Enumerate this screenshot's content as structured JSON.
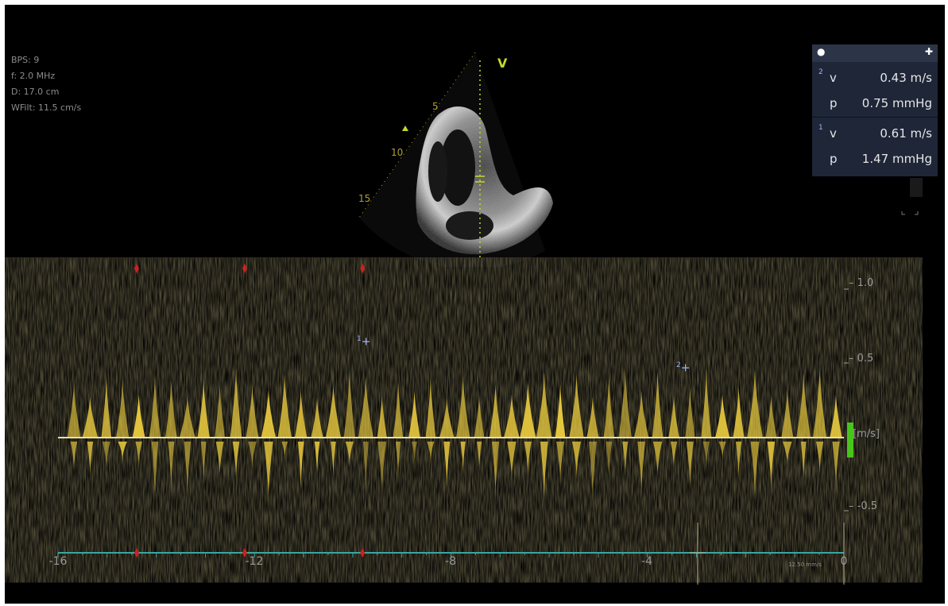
{
  "acquisition_params": {
    "bps": "BPS: 9",
    "frequency": "f: 2.0 MHz",
    "depth": "D: 17.0 cm",
    "wall_filter": "WFilt: 11.5 cm/s"
  },
  "sector": {
    "view_label": "V",
    "depth_marks": [
      "5",
      "10",
      "15"
    ]
  },
  "measurements_panel": {
    "header_icons": [
      "circle-icon",
      "move-icon"
    ],
    "rows": [
      {
        "index": "2",
        "label": "v",
        "value": "0.43 m/s"
      },
      {
        "index": "",
        "label": "p",
        "value": "0.75 mmHg"
      },
      {
        "index": "1",
        "label": "v",
        "value": "0.61 m/s"
      },
      {
        "index": "",
        "label": "p",
        "value": "1.47 mmHg"
      }
    ]
  },
  "doppler": {
    "velocity_ticks": [
      "1.0",
      "0.5",
      "[m/s]",
      "-0.5"
    ],
    "time_ticks": [
      "-16",
      "-12",
      "-8",
      "-4",
      "0"
    ],
    "sweep_speed": "12.50 mm/s",
    "cursor_labels": [
      "1",
      "2"
    ],
    "ecg_marker_positions_s": [
      -14.4,
      -12.2,
      -9.8
    ]
  },
  "colors": {
    "background": "#000000",
    "spectrum": "#f0d040",
    "baseline": "#e8e0a8",
    "time_axis": "#3aa6a0",
    "scale_bar": "#49c41c",
    "ecg_marker": "#d02020",
    "panel_bg": "#1e2638",
    "cursor": "#9db4ff"
  }
}
